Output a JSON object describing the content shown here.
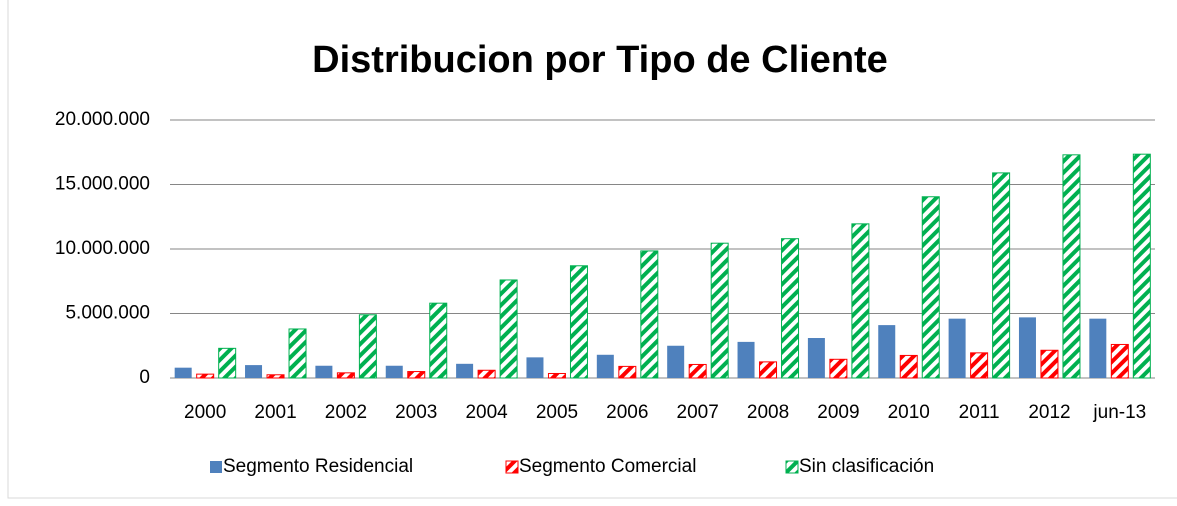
{
  "chart_data": {
    "type": "bar",
    "title": "Distribucion por Tipo de Cliente",
    "categories": [
      "2000",
      "2001",
      "2002",
      "2003",
      "2004",
      "2005",
      "2006",
      "2007",
      "2008",
      "2009",
      "2010",
      "2011",
      "2012",
      "jun-13"
    ],
    "series": [
      {
        "name": "Segmento Residencial",
        "color": "#4f81bd",
        "pattern": "solid",
        "values": [
          800000,
          1000000,
          950000,
          950000,
          1100000,
          1600000,
          1800000,
          2500000,
          2800000,
          3100000,
          4100000,
          4600000,
          4700000,
          4600000
        ]
      },
      {
        "name": "Segmento Comercial",
        "color": "#ff0000",
        "pattern": "hatch",
        "values": [
          300000,
          250000,
          400000,
          500000,
          600000,
          350000,
          900000,
          1050000,
          1250000,
          1450000,
          1750000,
          1950000,
          2150000,
          2600000
        ]
      },
      {
        "name": "Sin clasificación",
        "color": "#00b050",
        "pattern": "hatch",
        "values": [
          2300000,
          3800000,
          4900000,
          5800000,
          7600000,
          8700000,
          9850000,
          10450000,
          10800000,
          11950000,
          14050000,
          15900000,
          17300000,
          17350000
        ]
      }
    ],
    "ylim": [
      0,
      20000000
    ],
    "yticks": [
      0,
      {
        "value": 5000000,
        "label": "5.000.000"
      },
      {
        "value": 10000000,
        "label": "10.000.000"
      },
      {
        "value": 15000000,
        "label": "15.000.000"
      },
      {
        "value": 20000000,
        "label": "20.000.000"
      }
    ],
    "grid": true,
    "legend": "bottom"
  }
}
